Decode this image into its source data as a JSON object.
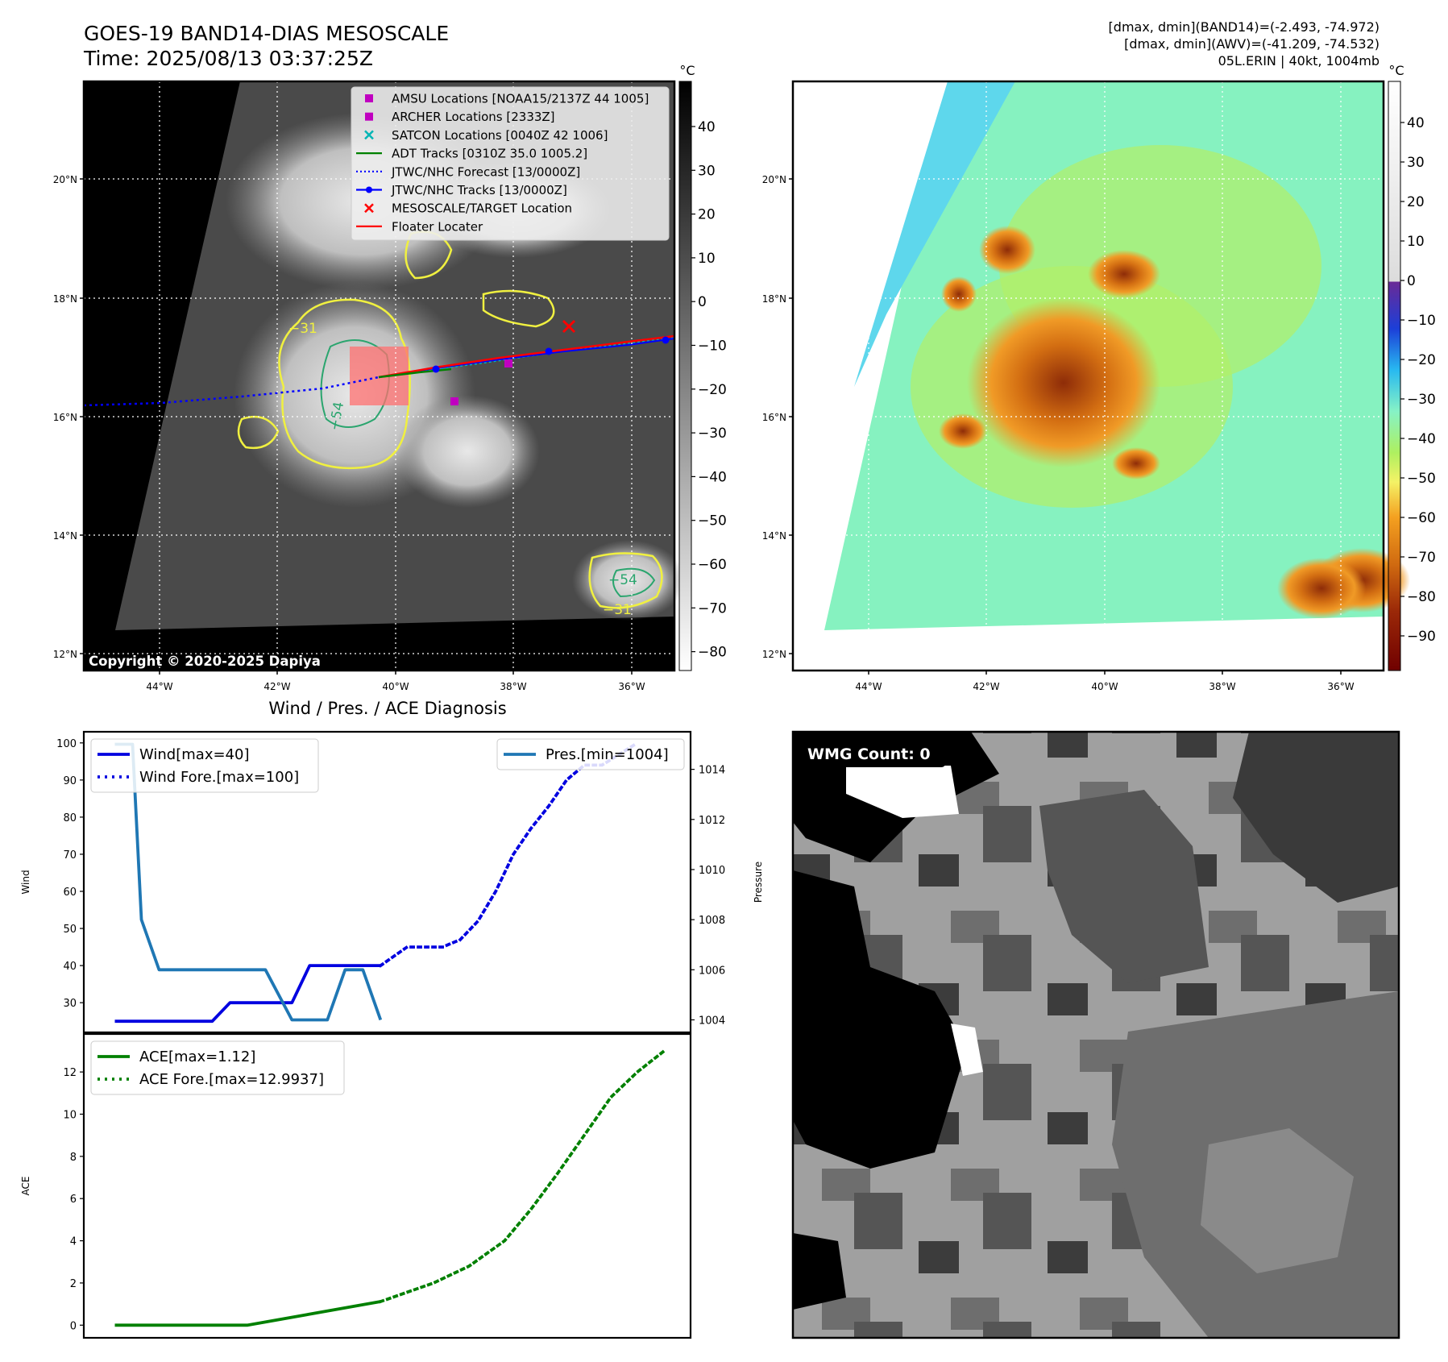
{
  "header": {
    "title_line1": "GOES-19 BAND14-DIAS MESOSCALE",
    "title_line2": "Time: 2025/08/13 03:37:25Z",
    "info_line1": "[dmax, dmin](BAND14)=(-2.493, -74.972)",
    "info_line2": "[dmax, dmin](AWV)=(-41.209, -74.532)",
    "info_line3": "05L.ERIN | 40kt, 1004mb"
  },
  "copyright": "Copyright © 2020-2025 Dapiya",
  "wmg_label": "WMG Count: 0",
  "colorbar_unit": "°C",
  "map_axes": {
    "lat_ticks": [
      "20°N",
      "18°N",
      "16°N",
      "14°N",
      "12°N"
    ],
    "lon_ticks": [
      "44°W",
      "42°W",
      "40°W",
      "38°W",
      "36°W"
    ]
  },
  "ir_colorbar_ticks": [
    "40",
    "30",
    "20",
    "10",
    "0",
    "−10",
    "−20",
    "−30",
    "−40",
    "−50",
    "−60",
    "−70",
    "−80"
  ],
  "awv_colorbar_ticks": [
    "40",
    "30",
    "20",
    "10",
    "0",
    "−10",
    "−20",
    "−30",
    "−40",
    "−50",
    "−60",
    "−70",
    "−80",
    "−90"
  ],
  "ir_contour_labels": [
    "−31",
    "−54",
    "−54",
    "−31"
  ],
  "legend": {
    "items": [
      {
        "label": "AMSU Locations [NOAA15/2137Z 44 1005]",
        "color": "#c000c0"
      },
      {
        "label": "ARCHER Locations [2333Z]",
        "color": "#c000c0"
      },
      {
        "label": "SATCON Locations [0040Z 42 1006]",
        "color": "#00b5b5"
      },
      {
        "label": "ADT Tracks [0310Z 35.0 1005.2]",
        "color": "#008000"
      },
      {
        "label": "JTWC/NHC Forecast [13/0000Z]",
        "color": "#0000ff"
      },
      {
        "label": "JTWC/NHC Tracks [13/0000Z]",
        "color": "#0000ff"
      },
      {
        "label": "MESOSCALE/TARGET Location",
        "color": "#ff0000"
      },
      {
        "label": "Floater Locater",
        "color": "#ff0000"
      }
    ]
  },
  "chart_data": [
    {
      "type": "line",
      "title": "Wind / Pres. / ACE Diagnosis",
      "ylabel": "Wind",
      "ylabel_right": "Pressure",
      "ylim": [
        22,
        103
      ],
      "ylim_right": [
        1003.5,
        1015.5
      ],
      "y_ticks": [
        30,
        40,
        50,
        60,
        70,
        80,
        90,
        100
      ],
      "y_ticks_right": [
        1004,
        1006,
        1008,
        1010,
        1012,
        1014
      ],
      "series": [
        {
          "name": "Wind[max=40]",
          "color": "#0000e0",
          "style": "solid",
          "x": [
            0,
            5,
            11,
            13,
            20,
            22,
            30
          ],
          "values": [
            25,
            25,
            25,
            30,
            30,
            40,
            40
          ]
        },
        {
          "name": "Wind Fore.[max=100]",
          "color": "#0000e0",
          "style": "dotted",
          "x": [
            30,
            33,
            36,
            37,
            39,
            41,
            43,
            45,
            47,
            49,
            51,
            53,
            55,
            57,
            59
          ],
          "values": [
            40,
            45,
            45,
            45,
            47,
            52,
            60,
            70,
            77,
            83,
            90,
            94,
            94,
            97,
            100
          ]
        },
        {
          "name": "Pres.[min=1004]",
          "color": "#1f77b4",
          "style": "solid",
          "axis": "right",
          "x": [
            0,
            1,
            2,
            3,
            5,
            13,
            15,
            17,
            20,
            23,
            24,
            26,
            27,
            28,
            30
          ],
          "values": [
            1015,
            1015,
            1015,
            1008,
            1006,
            1006,
            1006,
            1006,
            1004,
            1004,
            1004,
            1006,
            1006,
            1006,
            1004
          ]
        }
      ]
    },
    {
      "type": "line",
      "ylabel": "ACE",
      "ylim": [
        -0.6,
        13.8
      ],
      "y_ticks": [
        0,
        2,
        4,
        6,
        8,
        10,
        12
      ],
      "series": [
        {
          "name": "ACE[max=1.12]",
          "color": "#008000",
          "style": "solid",
          "x": [
            0,
            15,
            30
          ],
          "values": [
            0,
            0,
            1.12
          ]
        },
        {
          "name": "ACE Fore.[max=12.9937]",
          "color": "#008000",
          "style": "dotted",
          "x": [
            30,
            36,
            40,
            44,
            47,
            50,
            53,
            56,
            59,
            62
          ],
          "values": [
            1.12,
            2.0,
            2.8,
            4.0,
            5.5,
            7.2,
            9.0,
            10.8,
            12.0,
            12.99
          ]
        }
      ]
    }
  ]
}
